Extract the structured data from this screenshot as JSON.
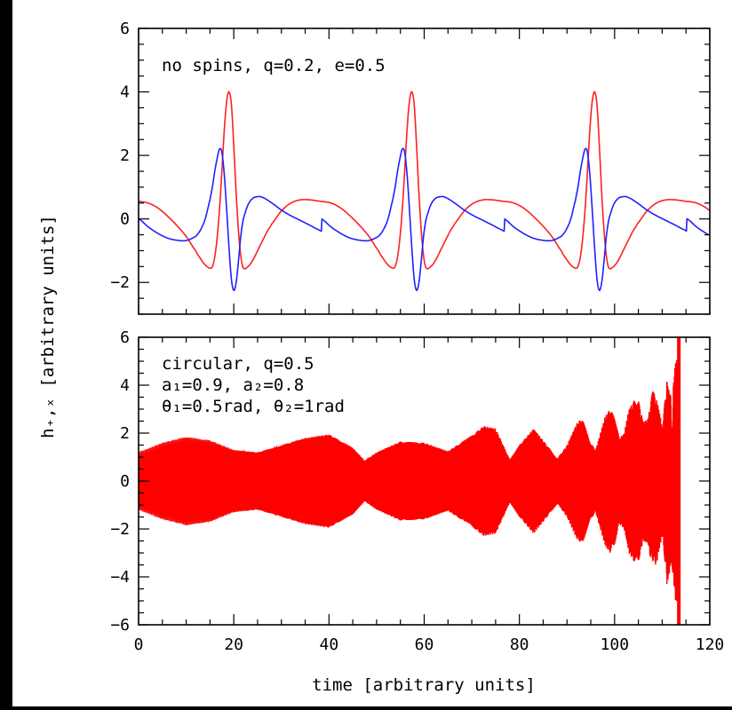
{
  "figure": {
    "background": "#ffffff",
    "frame_color": "#000000"
  },
  "chart_data": [
    {
      "type": "line",
      "panel": "top",
      "annotation_lines": [
        "no spins, q=0.2, e=0.5"
      ],
      "xlim": [
        0,
        120
      ],
      "ylim": [
        -3,
        6
      ],
      "yticks": [
        -2,
        0,
        2,
        4,
        6
      ],
      "yticklabels": [
        "−2",
        "0",
        "2",
        "4",
        "6"
      ],
      "grid": false,
      "period": 38.4,
      "series": [
        {
          "color": "#ff2020",
          "x": [
            0,
            2,
            4,
            6,
            8,
            10,
            12,
            13,
            14,
            15,
            15.5,
            16,
            16.5,
            17,
            17.5,
            18,
            18.5,
            19,
            19.5,
            20,
            20.5,
            21,
            21.5,
            22,
            23,
            24,
            25,
            26,
            27,
            28,
            30,
            32,
            34,
            36,
            38,
            38.4
          ],
          "y": [
            0.55,
            0.5,
            0.35,
            0.1,
            -0.2,
            -0.55,
            -1.0,
            -1.25,
            -1.45,
            -1.55,
            -1.5,
            -1.2,
            -0.6,
            0.3,
            1.5,
            2.8,
            3.7,
            4.0,
            3.6,
            2.3,
            0.8,
            -0.4,
            -1.2,
            -1.55,
            -1.5,
            -1.3,
            -1.0,
            -0.7,
            -0.4,
            -0.15,
            0.25,
            0.5,
            0.6,
            0.6,
            0.56,
            0.55
          ]
        },
        {
          "color": "#2020ff",
          "x": [
            0,
            2,
            4,
            6,
            8,
            10,
            12,
            13,
            14,
            15,
            15.5,
            16,
            16.5,
            17,
            17.5,
            18,
            18.5,
            19,
            19.5,
            20,
            20.5,
            21,
            21.5,
            22,
            23,
            24,
            25,
            26,
            28,
            30,
            32,
            34,
            36,
            38,
            38.4
          ],
          "y": [
            0,
            -0.25,
            -0.45,
            -0.6,
            -0.67,
            -0.68,
            -0.55,
            -0.35,
            0,
            0.6,
            1.0,
            1.5,
            1.9,
            2.2,
            2.1,
            1.4,
            0.3,
            -0.9,
            -1.9,
            -2.25,
            -2.0,
            -1.3,
            -0.5,
            0,
            0.45,
            0.65,
            0.7,
            0.68,
            0.5,
            0.28,
            0.1,
            -0.05,
            -0.2,
            -0.35,
            -0.38
          ]
        }
      ]
    },
    {
      "type": "line",
      "panel": "bottom",
      "annotation_lines": [
        "circular, q=0.5",
        "a₁=0.9, a₂=0.8",
        "θ₁=0.5rad, θ₂=1rad"
      ],
      "xlim": [
        0,
        120
      ],
      "ylim": [
        -6,
        6
      ],
      "xticks": [
        0,
        20,
        40,
        60,
        80,
        100,
        120
      ],
      "xticklabels": [
        "0",
        "20",
        "40",
        "60",
        "80",
        "100",
        "120"
      ],
      "yticks": [
        -6,
        -4,
        -2,
        0,
        2,
        4,
        6
      ],
      "yticklabels": [
        "−6",
        "−4",
        "−2",
        "0",
        "2",
        "4",
        "6"
      ],
      "grid": false,
      "merger_time": 113.5,
      "series": [
        {
          "color": "#ff0000",
          "style": "filled-envelope",
          "x": [
            0,
            5,
            10,
            15,
            20,
            25,
            30,
            35,
            40,
            45,
            47.5,
            50,
            55,
            60,
            65,
            70,
            72.5,
            75,
            78,
            80,
            83,
            85,
            88,
            90,
            92,
            93,
            94,
            95,
            96,
            97,
            98,
            99,
            100,
            101,
            102,
            103,
            104,
            105,
            106,
            107,
            108,
            109,
            110,
            111,
            112,
            113,
            113.5
          ],
          "envelope": [
            1.2,
            1.6,
            1.85,
            1.7,
            1.3,
            1.2,
            1.5,
            1.8,
            1.95,
            1.4,
            0.85,
            1.2,
            1.65,
            1.6,
            1.25,
            1.9,
            2.3,
            2.2,
            0.9,
            1.5,
            2.2,
            1.7,
            0.95,
            1.5,
            2.4,
            2.6,
            2.3,
            1.6,
            1.3,
            2.0,
            2.7,
            3.0,
            2.7,
            1.8,
            2.0,
            3.0,
            3.35,
            3.4,
            2.5,
            2.6,
            3.8,
            3.3,
            2.3,
            4.3,
            3.4,
            5.5,
            6.3
          ]
        }
      ]
    }
  ],
  "axes": {
    "ylabel": "h₊,ₓ [arbitrary units]",
    "xlabel": "time [arbitrary units]"
  }
}
